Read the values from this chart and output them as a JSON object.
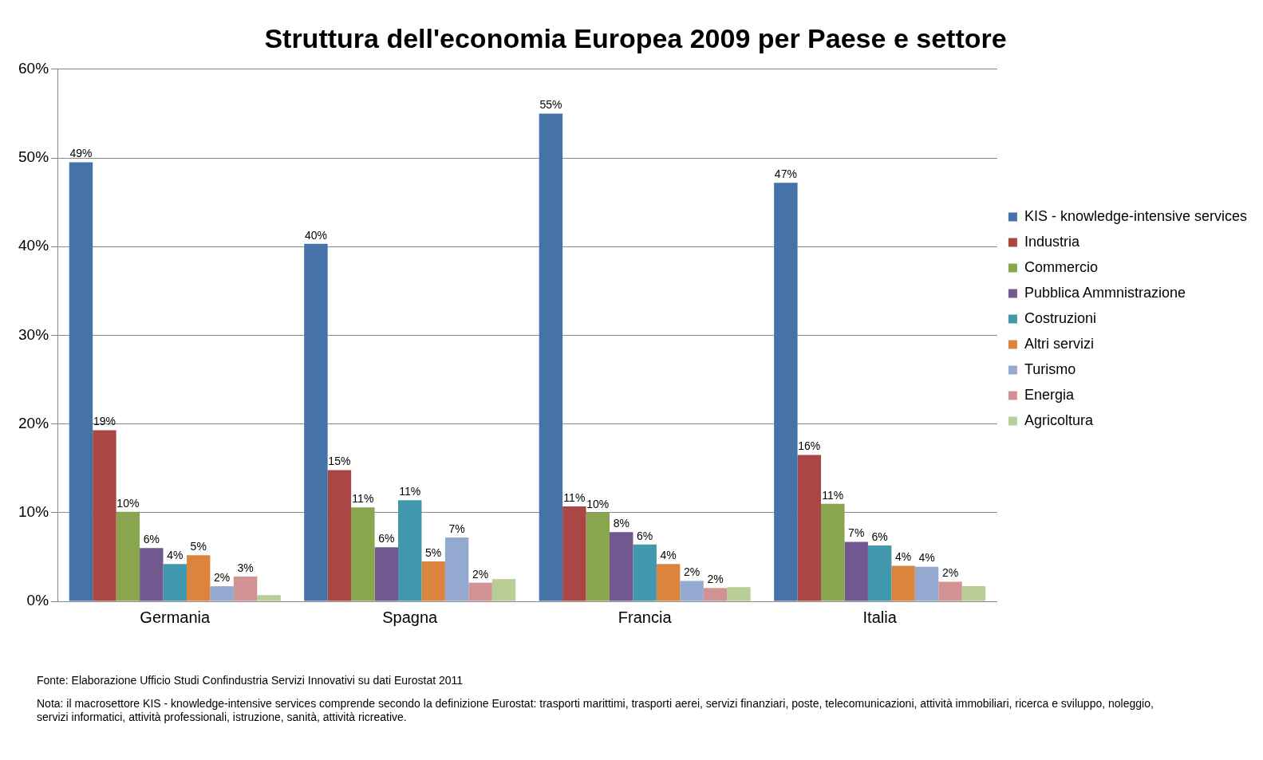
{
  "chart_data": {
    "type": "bar",
    "title": "Struttura dell'economia Europea 2009 per Paese e settore",
    "categories": [
      "Germania",
      "Spagna",
      "Francia",
      "Italia"
    ],
    "series": [
      {
        "name": "KIS - knowledge-intensive services",
        "color": "#4572a7",
        "values": [
          49.5,
          40.3,
          55,
          47.2
        ],
        "value_labels": [
          "49%",
          "40%",
          "55%",
          "47%"
        ]
      },
      {
        "name": "Industria",
        "color": "#aa4643",
        "values": [
          19.3,
          14.8,
          10.7,
          16.5
        ],
        "value_labels": [
          "19%",
          "15%",
          "11%",
          "16%"
        ]
      },
      {
        "name": "Commercio",
        "color": "#89a54e",
        "values": [
          10.1,
          10.6,
          10,
          11
        ],
        "value_labels": [
          "10%",
          "11%",
          "10%",
          "11%"
        ]
      },
      {
        "name": "Pubblica Ammnistrazione",
        "color": "#71588f",
        "values": [
          6,
          6.1,
          7.8,
          6.7
        ],
        "value_labels": [
          "6%",
          "6%",
          "8%",
          "7%"
        ]
      },
      {
        "name": "Costruzioni",
        "color": "#4198af",
        "values": [
          4.2,
          11.4,
          6.4,
          6.3
        ],
        "value_labels": [
          "4%",
          "11%",
          "6%",
          "6%"
        ]
      },
      {
        "name": "Altri servizi",
        "color": "#db843d",
        "values": [
          5.2,
          4.5,
          4.2,
          4
        ],
        "value_labels": [
          "5%",
          "5%",
          "4%",
          "4%"
        ]
      },
      {
        "name": "Turismo",
        "color": "#93a9cf",
        "values": [
          1.7,
          7.2,
          2.3,
          3.9
        ],
        "value_labels": [
          "2%",
          "7%",
          "2%",
          "4%"
        ]
      },
      {
        "name": "Energia",
        "color": "#d19392",
        "values": [
          2.8,
          2.1,
          1.5,
          2.2
        ],
        "value_labels": [
          "3%",
          "2%",
          "2%",
          "2%"
        ]
      },
      {
        "name": "Agricoltura",
        "color": "#b9cd96",
        "values": [
          0.7,
          2.5,
          1.6,
          1.7
        ],
        "value_labels": [
          null,
          null,
          null,
          null
        ]
      }
    ],
    "ylim": [
      0,
      60
    ],
    "yticks": [
      {
        "value": 0,
        "label": "0%"
      },
      {
        "value": 10,
        "label": "10%"
      },
      {
        "value": 20,
        "label": "20%"
      },
      {
        "value": 30,
        "label": "30%"
      },
      {
        "value": 40,
        "label": "40%"
      },
      {
        "value": 50,
        "label": "50%"
      },
      {
        "value": 60,
        "label": "60%"
      }
    ],
    "grid": "y",
    "legend": "right",
    "annotations": [
      "Fonte: Elaborazione Ufficio Studi Confindustria Servizi Innovativi su dati Eurostat 2011",
      "Nota: il macrosettore KIS - knowledge-intensive  services comprende secondo la definizione Eurostat: trasporti marittimi, trasporti aerei, servizi finanziari, poste, telecomunicazioni, attività immobiliari, ricerca e sviluppo, noleggio, servizi informatici, attività professionali, istruzione, sanità, attività ricreative."
    ]
  }
}
